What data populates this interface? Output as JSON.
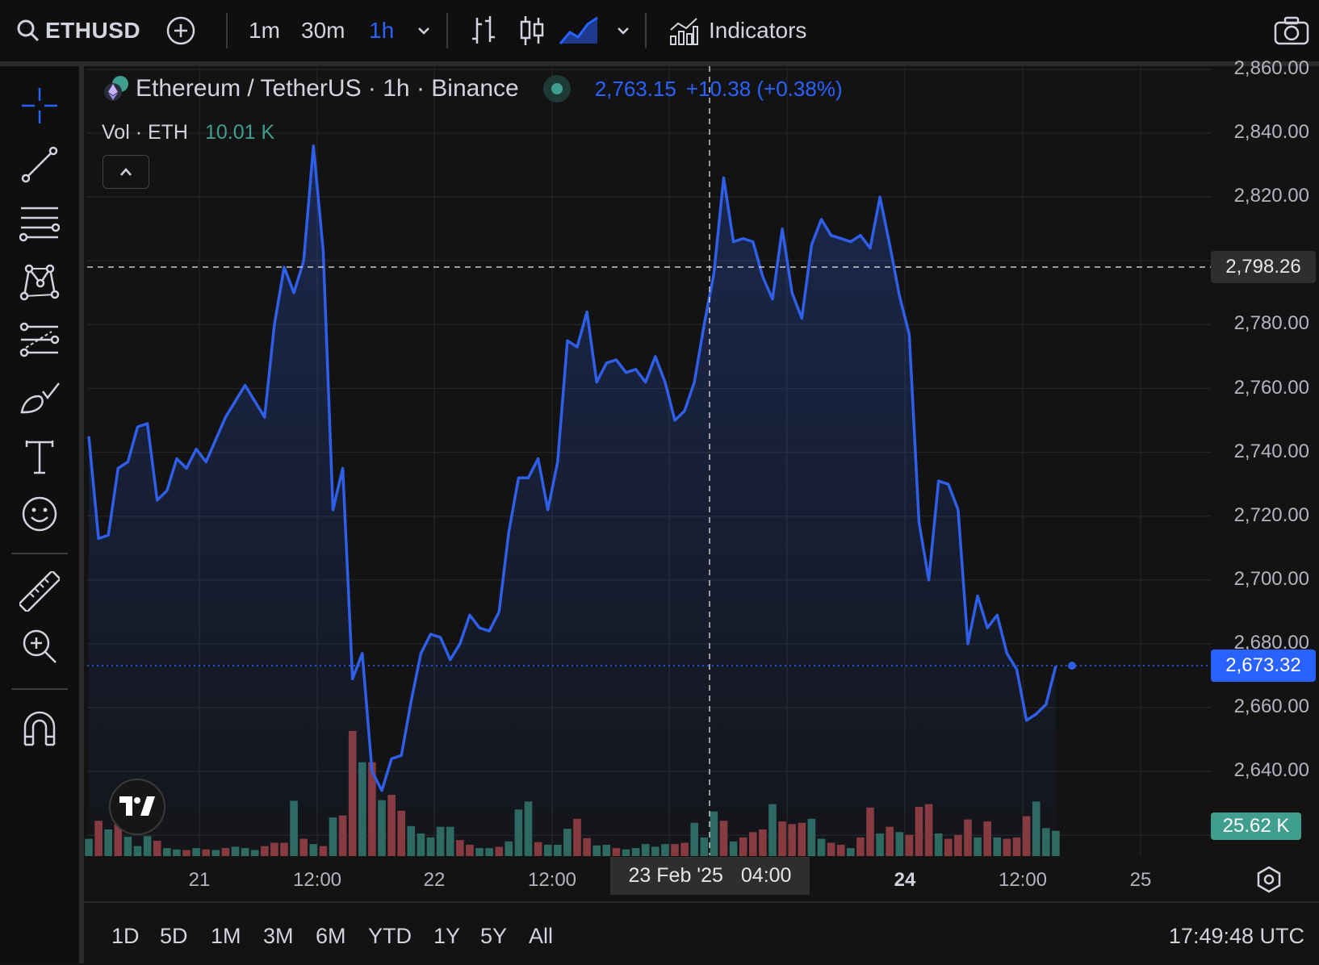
{
  "toolbar": {
    "symbol": "ETHUSD",
    "intervals": [
      "1m",
      "30m",
      "1h"
    ],
    "active_interval": "1h",
    "indicators_label": "Indicators"
  },
  "legend": {
    "title": "Ethereum / TetherUS · 1h · Binance",
    "price": "2,763.15",
    "change": "+10.38 (+0.38%)",
    "vol_label": "Vol · ETH",
    "vol_value": "10.01 K"
  },
  "crosshair": {
    "price_label": "2,798.26",
    "time_date": "23 Feb '25",
    "time_hour": "04:00"
  },
  "last_price_label": "2,673.32",
  "volume_label": "25.62 K",
  "bottom": {
    "ranges": [
      "1D",
      "5D",
      "1M",
      "3M",
      "6M",
      "YTD",
      "1Y",
      "5Y",
      "All"
    ],
    "clock": "17:49:48 UTC"
  },
  "colors": {
    "line": "#2f5fe8",
    "up_volume": "#2e6b5e",
    "down_volume": "#8a3a3a",
    "accent": "#2962ff",
    "volume_tag": "#3f9e8e"
  },
  "chart_data": {
    "type": "line",
    "title": "Ethereum / TetherUS · 1h · Binance",
    "ylim": [
      2620,
      2860
    ],
    "y_ticks": [
      "2,860.00",
      "2,840.00",
      "2,820.00",
      "2,780.00",
      "2,760.00",
      "2,740.00",
      "2,720.00",
      "2,700.00",
      "2,680.00",
      "2,660.00",
      "2,640.00"
    ],
    "x_ticks": [
      "21",
      "12:00",
      "22",
      "12:00",
      "24",
      "12:00",
      "25"
    ],
    "series": [
      {
        "values": [
          2745,
          2713,
          2714,
          2735,
          2737,
          2748,
          2749,
          2725,
          2728,
          2738,
          2735,
          2741,
          2737,
          2744,
          2751,
          2756,
          2761,
          2756,
          2751,
          2780,
          2798,
          2790,
          2800,
          2836,
          2803,
          2722,
          2735,
          2669,
          2677,
          2640,
          2634,
          2644,
          2645,
          2662,
          2677,
          2683,
          2682,
          2675,
          2680,
          2689,
          2685,
          2684,
          2690,
          2715,
          2732,
          2732,
          2738,
          2722,
          2737,
          2775,
          2773,
          2784,
          2762,
          2768,
          2769,
          2765,
          2766,
          2762,
          2770,
          2762,
          2750,
          2753,
          2762,
          2780,
          2796,
          2826,
          2806,
          2807,
          2806,
          2795,
          2788,
          2810,
          2790,
          2782,
          2805,
          2813,
          2808,
          2807,
          2806,
          2808,
          2804,
          2820,
          2805,
          2789,
          2777,
          2718,
          2700,
          2731,
          2730,
          2722,
          2680,
          2695,
          2685,
          2689,
          2677,
          2672,
          2656,
          2658,
          2661,
          2673
        ]
      }
    ],
    "volume": [
      {
        "v": 0.26,
        "up": true
      },
      {
        "v": 0.53,
        "up": false
      },
      {
        "v": 0.4,
        "up": true
      },
      {
        "v": 0.48,
        "up": false
      },
      {
        "v": 0.29,
        "up": true
      },
      {
        "v": 0.15,
        "up": true
      },
      {
        "v": 0.3,
        "up": true
      },
      {
        "v": 0.23,
        "up": false
      },
      {
        "v": 0.12,
        "up": true
      },
      {
        "v": 0.1,
        "up": true
      },
      {
        "v": 0.09,
        "up": false
      },
      {
        "v": 0.12,
        "up": true
      },
      {
        "v": 0.1,
        "up": false
      },
      {
        "v": 0.09,
        "up": true
      },
      {
        "v": 0.12,
        "up": false
      },
      {
        "v": 0.14,
        "up": true
      },
      {
        "v": 0.12,
        "up": true
      },
      {
        "v": 0.09,
        "up": true
      },
      {
        "v": 0.15,
        "up": false
      },
      {
        "v": 0.2,
        "up": false
      },
      {
        "v": 0.2,
        "up": false
      },
      {
        "v": 0.83,
        "up": true
      },
      {
        "v": 0.26,
        "up": false
      },
      {
        "v": 0.18,
        "up": true
      },
      {
        "v": 0.15,
        "up": false
      },
      {
        "v": 0.58,
        "up": true
      },
      {
        "v": 0.61,
        "up": false
      },
      {
        "v": 1.88,
        "up": false
      },
      {
        "v": 1.41,
        "up": true
      },
      {
        "v": 1.41,
        "up": false
      },
      {
        "v": 0.84,
        "up": true
      },
      {
        "v": 0.92,
        "up": false
      },
      {
        "v": 0.68,
        "up": false
      },
      {
        "v": 0.45,
        "up": true
      },
      {
        "v": 0.34,
        "up": true
      },
      {
        "v": 0.28,
        "up": true
      },
      {
        "v": 0.44,
        "up": true
      },
      {
        "v": 0.44,
        "up": true
      },
      {
        "v": 0.24,
        "up": false
      },
      {
        "v": 0.17,
        "up": false
      },
      {
        "v": 0.12,
        "up": true
      },
      {
        "v": 0.12,
        "up": true
      },
      {
        "v": 0.14,
        "up": false
      },
      {
        "v": 0.22,
        "up": true
      },
      {
        "v": 0.7,
        "up": true
      },
      {
        "v": 0.82,
        "up": true
      },
      {
        "v": 0.21,
        "up": false
      },
      {
        "v": 0.17,
        "up": true
      },
      {
        "v": 0.17,
        "up": true
      },
      {
        "v": 0.41,
        "up": true
      },
      {
        "v": 0.56,
        "up": false
      },
      {
        "v": 0.27,
        "up": false
      },
      {
        "v": 0.16,
        "up": true
      },
      {
        "v": 0.17,
        "up": true
      },
      {
        "v": 0.12,
        "up": false
      },
      {
        "v": 0.1,
        "up": true
      },
      {
        "v": 0.12,
        "up": true
      },
      {
        "v": 0.18,
        "up": true
      },
      {
        "v": 0.14,
        "up": true
      },
      {
        "v": 0.18,
        "up": true
      },
      {
        "v": 0.18,
        "up": false
      },
      {
        "v": 0.2,
        "up": false
      },
      {
        "v": 0.5,
        "up": true
      },
      {
        "v": 0.28,
        "up": true
      },
      {
        "v": 0.67,
        "up": true
      },
      {
        "v": 0.53,
        "up": false
      },
      {
        "v": 0.22,
        "up": true
      },
      {
        "v": 0.28,
        "up": false
      },
      {
        "v": 0.36,
        "up": false
      },
      {
        "v": 0.4,
        "up": false
      },
      {
        "v": 0.78,
        "up": true
      },
      {
        "v": 0.52,
        "up": false
      },
      {
        "v": 0.48,
        "up": false
      },
      {
        "v": 0.5,
        "up": false
      },
      {
        "v": 0.56,
        "up": true
      },
      {
        "v": 0.26,
        "up": true
      },
      {
        "v": 0.2,
        "up": false
      },
      {
        "v": 0.17,
        "up": false
      },
      {
        "v": 0.12,
        "up": true
      },
      {
        "v": 0.28,
        "up": false
      },
      {
        "v": 0.73,
        "up": false
      },
      {
        "v": 0.34,
        "up": true
      },
      {
        "v": 0.44,
        "up": false
      },
      {
        "v": 0.36,
        "up": true
      },
      {
        "v": 0.32,
        "up": false
      },
      {
        "v": 0.74,
        "up": false
      },
      {
        "v": 0.78,
        "up": false
      },
      {
        "v": 0.34,
        "up": true
      },
      {
        "v": 0.26,
        "up": false
      },
      {
        "v": 0.32,
        "up": false
      },
      {
        "v": 0.55,
        "up": false
      },
      {
        "v": 0.28,
        "up": true
      },
      {
        "v": 0.52,
        "up": false
      },
      {
        "v": 0.28,
        "up": true
      },
      {
        "v": 0.26,
        "up": false
      },
      {
        "v": 0.28,
        "up": false
      },
      {
        "v": 0.6,
        "up": false
      },
      {
        "v": 0.82,
        "up": true
      },
      {
        "v": 0.42,
        "up": true
      },
      {
        "v": 0.38,
        "up": true
      }
    ]
  }
}
